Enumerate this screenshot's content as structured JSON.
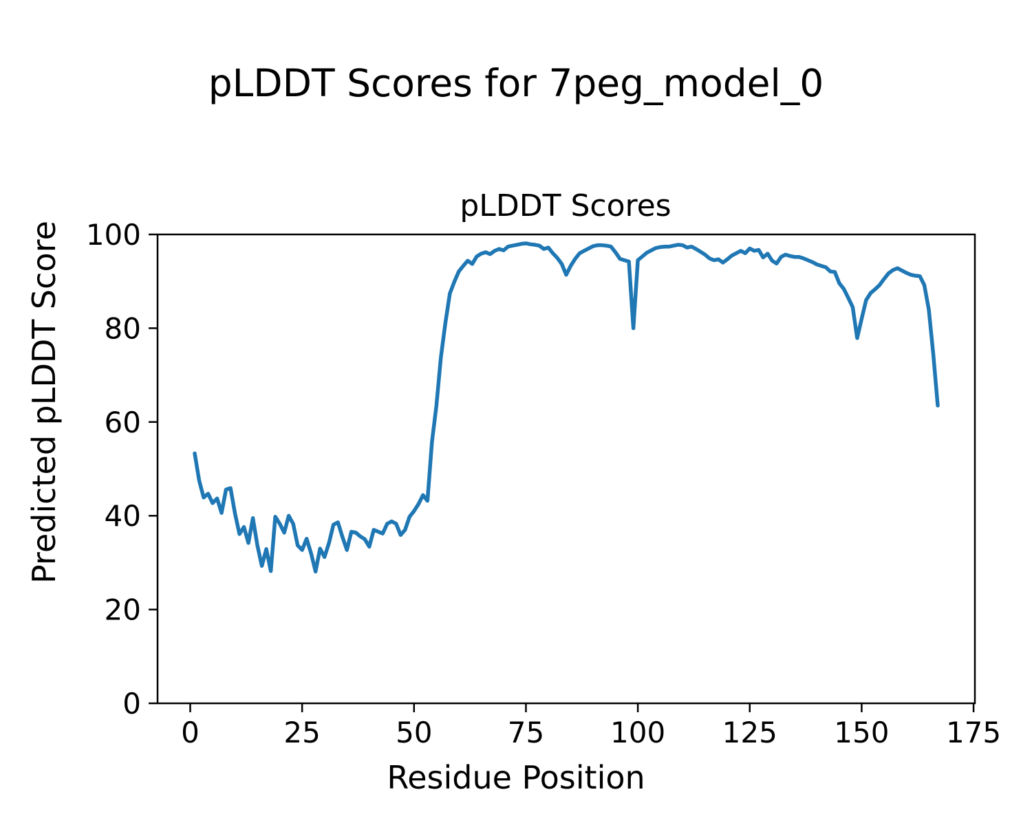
{
  "figure": {
    "background": "#ffffff",
    "text_color": "#000000"
  },
  "chart_data": {
    "type": "line",
    "suptitle": "pLDDT Scores for 7peg_model_0",
    "title": "pLDDT Scores",
    "xlabel": "Residue Position",
    "ylabel": "Predicted pLDDT Score",
    "line_color": "#1f77b4",
    "grid": false,
    "legend": null,
    "xlim": [
      -7.3,
      175.3
    ],
    "ylim": [
      0,
      100
    ],
    "xticks": [
      0,
      25,
      50,
      75,
      100,
      125,
      150,
      175
    ],
    "yticks": [
      0,
      20,
      40,
      60,
      80,
      100
    ],
    "x_start": 1,
    "x_step": 1,
    "series_name": "pLDDT",
    "values": [
      53.3,
      47.5,
      43.9,
      44.7,
      42.7,
      43.7,
      40.6,
      45.6,
      45.9,
      40.5,
      36.1,
      37.6,
      34.2,
      39.5,
      33.7,
      29.3,
      32.9,
      28.2,
      39.8,
      38.3,
      36.4,
      40.0,
      38.3,
      33.7,
      32.7,
      35.1,
      32.0,
      28.1,
      33.0,
      31.2,
      34.2,
      38.1,
      38.6,
      35.5,
      32.7,
      36.6,
      36.4,
      35.6,
      35.0,
      33.4,
      37.0,
      36.6,
      36.2,
      38.3,
      38.8,
      38.3,
      35.9,
      37.0,
      39.8,
      41.0,
      42.5,
      44.4,
      43.2,
      55.7,
      63.5,
      73.8,
      81.1,
      87.4,
      89.9,
      92.1,
      93.3,
      94.4,
      93.7,
      95.3,
      95.9,
      96.2,
      95.8,
      96.5,
      96.9,
      96.6,
      97.4,
      97.6,
      97.8,
      98.0,
      98.1,
      97.9,
      97.8,
      97.6,
      96.9,
      97.2,
      96.0,
      95.0,
      93.7,
      91.4,
      93.3,
      94.8,
      96.0,
      96.5,
      97.0,
      97.5,
      97.7,
      97.7,
      97.6,
      97.4,
      96.2,
      94.8,
      94.5,
      94.2,
      80.0,
      94.5,
      95.3,
      96.1,
      96.6,
      97.1,
      97.3,
      97.4,
      97.4,
      97.6,
      97.8,
      97.7,
      97.2,
      97.4,
      96.9,
      96.3,
      95.7,
      94.9,
      94.5,
      94.7,
      94.0,
      94.7,
      95.5,
      96.0,
      96.5,
      96.0,
      97.0,
      96.5,
      96.7,
      95.1,
      95.9,
      94.4,
      93.8,
      95.2,
      95.7,
      95.4,
      95.2,
      95.2,
      94.9,
      94.5,
      94.1,
      93.6,
      93.3,
      93.0,
      92.1,
      92.0,
      89.6,
      88.4,
      86.5,
      84.5,
      77.9,
      82.0,
      86.0,
      87.5,
      88.3,
      89.2,
      90.5,
      91.7,
      92.4,
      92.8,
      92.3,
      91.8,
      91.4,
      91.2,
      91.1,
      89.2,
      84.0,
      74.5,
      63.5
    ]
  }
}
